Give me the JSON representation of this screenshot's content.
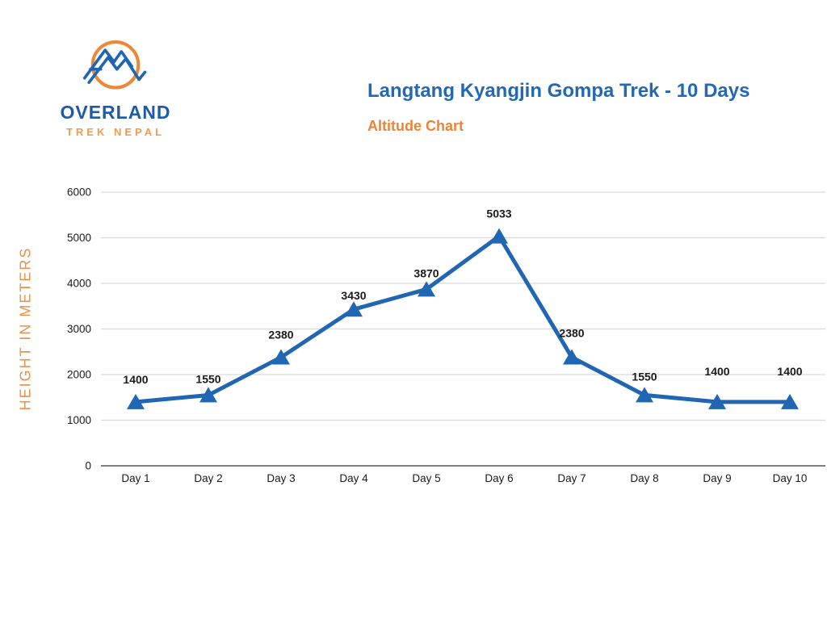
{
  "header": {
    "logo": {
      "name": "OVERLAND",
      "tagline": "TREK NEPAL"
    },
    "title": "Langtang Kyangjin Gompa Trek - 10 Days",
    "subtitle": "Altitude Chart"
  },
  "chart_data": {
    "type": "line",
    "title": "Altitude Chart",
    "categories": [
      "Day 1",
      "Day 2",
      "Day 3",
      "Day 4",
      "Day 5",
      "Day 6",
      "Day 7",
      "Day 8",
      "Day 9",
      "Day 10"
    ],
    "values": [
      1400,
      1550,
      2380,
      3430,
      3870,
      5033,
      2380,
      1550,
      1400,
      1400
    ],
    "xlabel": "",
    "ylabel": "HEIGHT IN METERS",
    "ylim": [
      0,
      6000
    ],
    "yticks": [
      0,
      1000,
      2000,
      3000,
      4000,
      5000,
      6000
    ],
    "grid": true,
    "legend_position": "none",
    "marker": "triangle-up",
    "data_labels": true,
    "label_dy": [
      -23,
      -15,
      -23,
      -12,
      -15,
      -23,
      -25,
      -18,
      -33,
      -33
    ],
    "colors": {
      "line": "#2066b2",
      "marker": "#2066b2",
      "data_label": "#1a1a1a",
      "grid": "#d9d9d9",
      "axis": "#7f7f7f",
      "tick_text": "#1a1a1a",
      "title_blue": "#2368b4",
      "accent_orange": "#ee8336"
    }
  }
}
